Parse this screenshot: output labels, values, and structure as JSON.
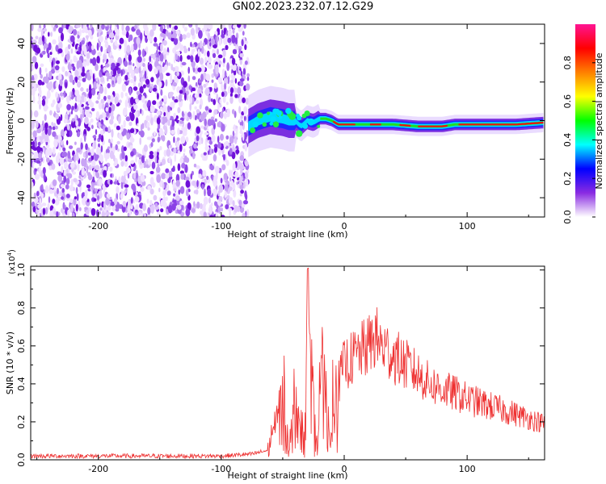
{
  "title": "GN02.2023.232.07.12.G29",
  "chart_data": [
    {
      "type": "heatmap",
      "panel": "top",
      "xlabel": "Height of straight line (km)",
      "ylabel": "Frequency (Hz)",
      "xlim": [
        -255,
        163
      ],
      "ylim": [
        -50,
        50
      ],
      "xticks": [
        -200,
        -100,
        0,
        100
      ],
      "yticks": [
        -40,
        -20,
        0,
        20,
        40
      ],
      "xtick_labels": [
        "-200",
        "-100",
        "0",
        "100"
      ],
      "ytick_labels": [
        "-40",
        "-20",
        "0",
        "20",
        "40"
      ],
      "noise_region_x": [
        -255,
        -78
      ],
      "signal_track": {
        "x": [
          -78,
          -70,
          -60,
          -50,
          -45,
          -40,
          -35,
          -30,
          -25,
          -20,
          -15,
          -10,
          -5,
          0,
          20,
          40,
          60,
          80,
          90,
          100,
          120,
          140,
          163
        ],
        "freq": [
          -3,
          0,
          2,
          1,
          0,
          0,
          -3,
          0,
          -1,
          1,
          1,
          0,
          -2,
          -2,
          -2,
          -2,
          -3,
          -3,
          -2,
          -2,
          -2,
          -2,
          -1
        ]
      },
      "colorbar": {
        "label": "Normalized spectral amplitude",
        "range": [
          0,
          1
        ],
        "ticks": [
          0.0,
          0.2,
          0.4,
          0.6,
          0.8
        ],
        "tick_labels": [
          "0.0",
          "0.2",
          "0.4",
          "0.6",
          "0.8"
        ],
        "colors": [
          "#ffffff",
          "#8a2be2",
          "#0000ff",
          "#00ffff",
          "#00ff00",
          "#ffff00",
          "#ff8000",
          "#ff0000",
          "#ff1493"
        ]
      }
    },
    {
      "type": "line",
      "panel": "bottom",
      "xlabel": "Height of straight line (km)",
      "ylabel": "SNR (10 * v/v)",
      "y_multiplier": "(x10",
      "y_multiplier_exp": "4",
      "y_multiplier_close": ")",
      "xlim": [
        -255,
        163
      ],
      "ylim": [
        0,
        1.02
      ],
      "xticks": [
        -200,
        -100,
        0,
        100
      ],
      "yticks": [
        0.0,
        0.2,
        0.4,
        0.6,
        0.8,
        1.0
      ],
      "xtick_labels": [
        "-200",
        "-100",
        "0",
        "100"
      ],
      "ytick_labels": [
        "0.0",
        "0.2",
        "0.4",
        "0.6",
        "0.8",
        "1.0"
      ],
      "series": [
        {
          "color": "#ee3030",
          "x": [
            -255,
            -200,
            -150,
            -100,
            -75,
            -62,
            -55,
            -50,
            -45,
            -42,
            -40,
            -35,
            -32,
            -30,
            -28,
            -25,
            -22,
            -18,
            -15,
            -12,
            -10,
            -5,
            0,
            10,
            20,
            25,
            30,
            40,
            50,
            60,
            70,
            80,
            90,
            100,
            120,
            140,
            163
          ],
          "values": [
            0.02,
            0.02,
            0.02,
            0.02,
            0.03,
            0.05,
            0.2,
            0.25,
            0.1,
            0.15,
            0.35,
            0.15,
            0.1,
            0.6,
            0.95,
            0.2,
            0.05,
            0.35,
            0.3,
            0.1,
            0.1,
            0.4,
            0.5,
            0.55,
            0.6,
            0.65,
            0.6,
            0.55,
            0.5,
            0.45,
            0.4,
            0.37,
            0.35,
            0.32,
            0.28,
            0.24,
            0.19
          ]
        }
      ]
    }
  ]
}
